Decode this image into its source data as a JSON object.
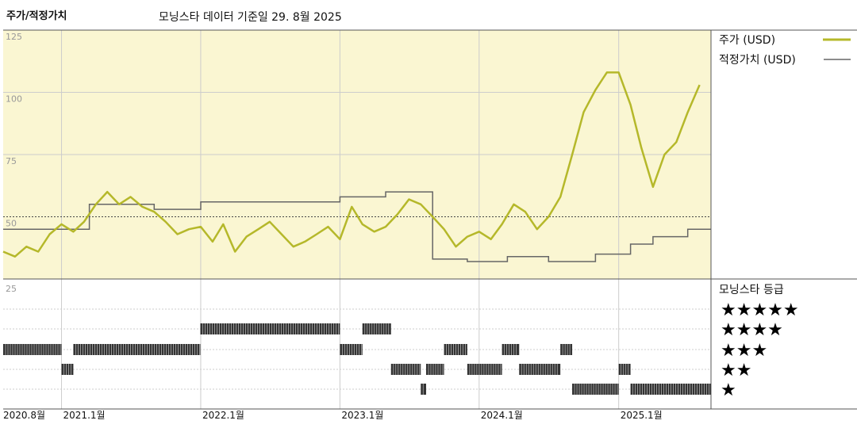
{
  "header": {
    "title": "주가/적정가치",
    "subtitle": "모닝스타 데이터 기준일 29. 8월 2025"
  },
  "legend": {
    "price_label": "주가 (USD)",
    "fair_label": "적정가치 (USD)",
    "rating_title": "모닝스타 등급"
  },
  "colors": {
    "price": "#b5b82a",
    "fair": "#666666",
    "upper_bg": "#faf6d2",
    "grid": "#cccccc",
    "bar": "#333333"
  },
  "chart_data": {
    "type": "line",
    "x_start": "2020-08",
    "x_end": "2025-08",
    "ylim": [
      25,
      125
    ],
    "yticks": [
      "125",
      "100",
      "75",
      "50",
      "25"
    ],
    "xticks": [
      {
        "label": "2020.8월",
        "date": "2020-08"
      },
      {
        "label": "2021.1월",
        "date": "2021-01"
      },
      {
        "label": "2022.1월",
        "date": "2022-01"
      },
      {
        "label": "2023.1월",
        "date": "2023-01"
      },
      {
        "label": "2024.1월",
        "date": "2024-01"
      },
      {
        "label": "2025.1월",
        "date": "2025-01"
      }
    ],
    "series": [
      {
        "name": "주가 (USD)",
        "points": [
          [
            "2020-08-01",
            36
          ],
          [
            "2020-09-01",
            34
          ],
          [
            "2020-10-01",
            38
          ],
          [
            "2020-11-01",
            36
          ],
          [
            "2020-12-01",
            43
          ],
          [
            "2021-01-01",
            47
          ],
          [
            "2021-02-01",
            44
          ],
          [
            "2021-03-01",
            48
          ],
          [
            "2021-04-01",
            55
          ],
          [
            "2021-05-01",
            60
          ],
          [
            "2021-06-01",
            55
          ],
          [
            "2021-07-01",
            58
          ],
          [
            "2021-08-01",
            54
          ],
          [
            "2021-09-01",
            52
          ],
          [
            "2021-10-01",
            48
          ],
          [
            "2021-11-01",
            43
          ],
          [
            "2021-12-01",
            45
          ],
          [
            "2022-01-01",
            46
          ],
          [
            "2022-02-01",
            40
          ],
          [
            "2022-03-01",
            47
          ],
          [
            "2022-04-01",
            36
          ],
          [
            "2022-05-01",
            42
          ],
          [
            "2022-06-01",
            45
          ],
          [
            "2022-07-01",
            48
          ],
          [
            "2022-08-01",
            43
          ],
          [
            "2022-09-01",
            38
          ],
          [
            "2022-10-01",
            40
          ],
          [
            "2022-11-01",
            43
          ],
          [
            "2022-12-01",
            46
          ],
          [
            "2023-01-01",
            41
          ],
          [
            "2023-02-01",
            54
          ],
          [
            "2023-03-01",
            47
          ],
          [
            "2023-04-01",
            44
          ],
          [
            "2023-05-01",
            46
          ],
          [
            "2023-06-01",
            51
          ],
          [
            "2023-07-01",
            57
          ],
          [
            "2023-08-01",
            55
          ],
          [
            "2023-09-01",
            50
          ],
          [
            "2023-10-01",
            45
          ],
          [
            "2023-11-01",
            38
          ],
          [
            "2023-12-01",
            42
          ],
          [
            "2024-01-01",
            44
          ],
          [
            "2024-02-01",
            41
          ],
          [
            "2024-03-01",
            47
          ],
          [
            "2024-04-01",
            55
          ],
          [
            "2024-05-01",
            52
          ],
          [
            "2024-06-01",
            45
          ],
          [
            "2024-07-01",
            50
          ],
          [
            "2024-08-01",
            58
          ],
          [
            "2024-09-01",
            75
          ],
          [
            "2024-10-01",
            92
          ],
          [
            "2024-11-01",
            101
          ],
          [
            "2024-12-01",
            108
          ],
          [
            "2025-01-01",
            108
          ],
          [
            "2025-02-01",
            95
          ],
          [
            "2025-03-01",
            78
          ],
          [
            "2025-04-01",
            62
          ],
          [
            "2025-05-01",
            75
          ],
          [
            "2025-06-01",
            80
          ],
          [
            "2025-07-01",
            92
          ],
          [
            "2025-08-01",
            103
          ]
        ]
      },
      {
        "name": "적정가치 (USD)",
        "points": [
          [
            "2020-08-01",
            45
          ],
          [
            "2021-01-01",
            45
          ],
          [
            "2021-03-15",
            45
          ],
          [
            "2021-03-15",
            55
          ],
          [
            "2021-09-01",
            55
          ],
          [
            "2021-09-01",
            53
          ],
          [
            "2022-01-01",
            53
          ],
          [
            "2022-01-01",
            56
          ],
          [
            "2023-01-01",
            56
          ],
          [
            "2023-01-01",
            58
          ],
          [
            "2023-05-01",
            58
          ],
          [
            "2023-05-01",
            60
          ],
          [
            "2023-09-01",
            60
          ],
          [
            "2023-09-01",
            33
          ],
          [
            "2023-12-01",
            33
          ],
          [
            "2023-12-01",
            32
          ],
          [
            "2024-03-15",
            32
          ],
          [
            "2024-03-15",
            34
          ],
          [
            "2024-07-01",
            34
          ],
          [
            "2024-07-01",
            32
          ],
          [
            "2024-11-01",
            32
          ],
          [
            "2024-11-01",
            35
          ],
          [
            "2025-02-01",
            35
          ],
          [
            "2025-02-01",
            39
          ],
          [
            "2025-04-01",
            39
          ],
          [
            "2025-04-01",
            42
          ],
          [
            "2025-07-01",
            42
          ],
          [
            "2025-07-01",
            45
          ],
          [
            "2025-08-31",
            45
          ]
        ]
      }
    ],
    "ratings": {
      "rows": [
        "★★★★★",
        "★★★★",
        "★★★",
        "★★",
        "★"
      ],
      "segments": [
        {
          "stars": 3,
          "start": "2020-08-01",
          "end": "2021-01-01"
        },
        {
          "stars": 2,
          "start": "2021-01-01",
          "end": "2021-02-01"
        },
        {
          "stars": 3,
          "start": "2021-02-01",
          "end": "2021-12-31"
        },
        {
          "stars": 4,
          "start": "2021-12-31",
          "end": "2023-01-01"
        },
        {
          "stars": 3,
          "start": "2023-01-01",
          "end": "2023-03-01"
        },
        {
          "stars": 4,
          "start": "2023-03-01",
          "end": "2023-05-15"
        },
        {
          "stars": 2,
          "start": "2023-05-15",
          "end": "2023-08-01"
        },
        {
          "stars": 1,
          "start": "2023-08-01",
          "end": "2023-08-15"
        },
        {
          "stars": 2,
          "start": "2023-08-15",
          "end": "2023-10-01"
        },
        {
          "stars": 3,
          "start": "2023-10-01",
          "end": "2023-12-01"
        },
        {
          "stars": 2,
          "start": "2023-12-01",
          "end": "2024-03-01"
        },
        {
          "stars": 3,
          "start": "2024-03-01",
          "end": "2024-04-15"
        },
        {
          "stars": 2,
          "start": "2024-04-15",
          "end": "2024-08-01"
        },
        {
          "stars": 3,
          "start": "2024-08-01",
          "end": "2024-09-01"
        },
        {
          "stars": 1,
          "start": "2024-09-01",
          "end": "2025-01-01"
        },
        {
          "stars": 2,
          "start": "2025-01-01",
          "end": "2025-02-01"
        },
        {
          "stars": 1,
          "start": "2025-02-01",
          "end": "2025-08-31"
        }
      ]
    }
  }
}
